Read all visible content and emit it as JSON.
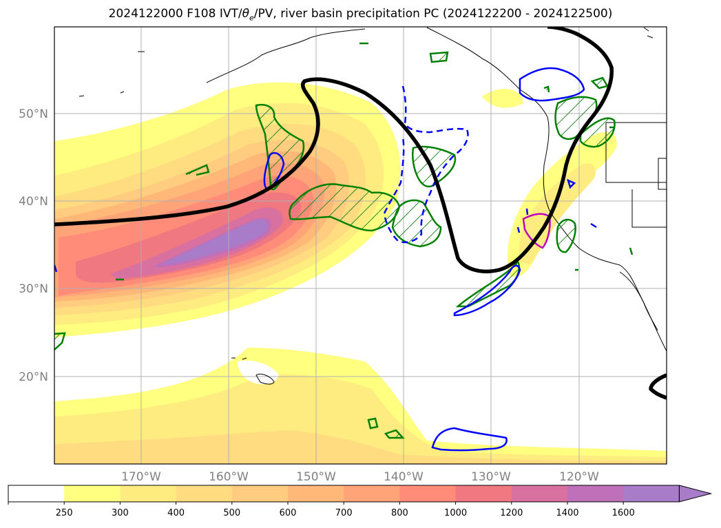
{
  "title": {
    "run": "2024122000 F108 IVT/",
    "theta": "θ",
    "theta_sub": "e",
    "rest": "/PV, river basin precipitation PC (2024122200 - 2024122500)"
  },
  "map": {
    "lat_labels": [
      "50°N",
      "40°N",
      "30°N",
      "20°N"
    ],
    "lon_labels": [
      "170°W",
      "160°W",
      "150°W",
      "140°W",
      "130°W",
      "120°W"
    ]
  },
  "colorbar": {
    "labels": [
      "250",
      "300",
      "400",
      "500",
      "600",
      "700",
      "800",
      "1000",
      "1200",
      "1400",
      "1600"
    ],
    "colors": [
      "#ffffff",
      "#ffff80",
      "#ffec80",
      "#ffdc80",
      "#ffcc80",
      "#ffb878",
      "#ffa478",
      "#ff8c78",
      "#f07880",
      "#d870a0",
      "#c070b8",
      "#a87cc8"
    ]
  },
  "legend_colors": {
    "pv_contour": "#000000",
    "theta_e_contour": "#0000ff",
    "precip_green": "#008000",
    "precip_magenta": "#c000c0"
  }
}
